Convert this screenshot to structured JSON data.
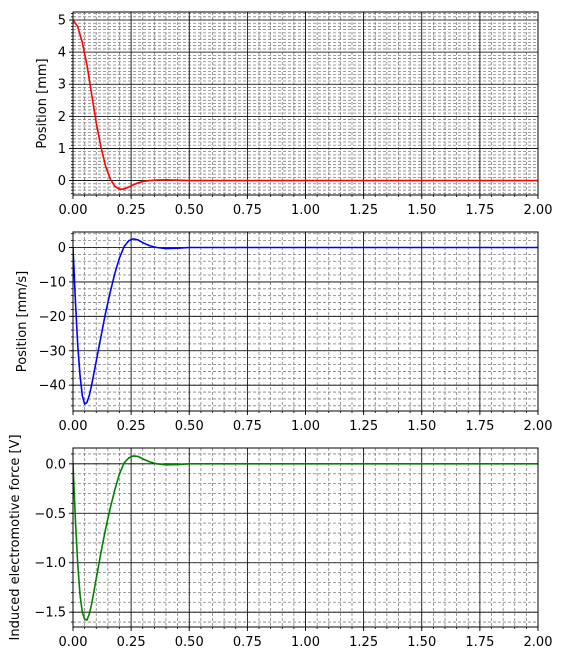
{
  "chart_data": [
    {
      "type": "line",
      "title": "",
      "xlabel": "",
      "ylabel": "Position [mm]",
      "xlim": [
        0,
        2
      ],
      "ylim": [
        -0.45,
        5.25
      ],
      "x_ticks": [
        0,
        0.25,
        0.5,
        0.75,
        1.0,
        1.25,
        1.5,
        1.75,
        2.0
      ],
      "x_tick_labels": [
        "0.00",
        "0.25",
        "0.50",
        "0.75",
        "1.00",
        "1.25",
        "1.50",
        "1.75",
        "2.00"
      ],
      "y_ticks": [
        0,
        1,
        2,
        3,
        4,
        5
      ],
      "y_tick_labels": [
        "0",
        "1",
        "2",
        "3",
        "4",
        "5"
      ],
      "grid": "major solid, minor dashed",
      "series": [
        {
          "color": "#ff0000",
          "x": [
            0,
            0.02,
            0.04,
            0.06,
            0.08,
            0.1,
            0.12,
            0.14,
            0.16,
            0.18,
            0.2,
            0.22,
            0.24,
            0.26,
            0.28,
            0.3,
            0.33,
            0.36,
            0.4,
            0.45,
            0.5,
            0.6,
            0.8,
            1.0,
            1.25,
            1.5,
            1.75,
            2.0
          ],
          "y": [
            5.0,
            4.8,
            4.3,
            3.6,
            2.7,
            1.8,
            1.05,
            0.45,
            0.05,
            -0.18,
            -0.27,
            -0.26,
            -0.2,
            -0.13,
            -0.07,
            -0.03,
            0.0,
            0.015,
            0.02,
            0.01,
            0.0,
            0.0,
            0.0,
            0.0,
            0.0,
            0.0,
            0.0,
            0.0
          ]
        }
      ]
    },
    {
      "type": "line",
      "title": "",
      "xlabel": "",
      "ylabel": "Position [mm/s]",
      "xlim": [
        0,
        2
      ],
      "ylim": [
        -47.5,
        4.5
      ],
      "x_ticks": [
        0,
        0.25,
        0.5,
        0.75,
        1.0,
        1.25,
        1.5,
        1.75,
        2.0
      ],
      "x_tick_labels": [
        "0.00",
        "0.25",
        "0.50",
        "0.75",
        "1.00",
        "1.25",
        "1.50",
        "1.75",
        "2.00"
      ],
      "y_ticks": [
        -40,
        -30,
        -20,
        -10,
        0
      ],
      "y_tick_labels": [
        "−40",
        "−30",
        "−20",
        "−10",
        "0"
      ],
      "grid": "major solid, minor dashed",
      "series": [
        {
          "color": "#0000ff",
          "x": [
            0,
            0.01,
            0.02,
            0.03,
            0.04,
            0.05,
            0.06,
            0.07,
            0.08,
            0.1,
            0.12,
            0.14,
            0.16,
            0.18,
            0.2,
            0.22,
            0.24,
            0.26,
            0.28,
            0.3,
            0.33,
            0.36,
            0.4,
            0.45,
            0.5,
            0.6,
            0.8,
            1.0,
            1.25,
            1.5,
            1.75,
            2.0
          ],
          "y": [
            0,
            -15,
            -28,
            -37,
            -43,
            -45.5,
            -45,
            -43,
            -40,
            -33,
            -26,
            -19,
            -13,
            -7.5,
            -3,
            0.3,
            2.0,
            2.5,
            2.2,
            1.4,
            0.5,
            0.0,
            -0.3,
            -0.2,
            0.0,
            0.0,
            0.0,
            0.0,
            0.0,
            0.0,
            0.0,
            0.0
          ]
        }
      ]
    },
    {
      "type": "line",
      "title": "",
      "xlabel": "",
      "ylabel": "Induced electromotive force [V]",
      "xlim": [
        0,
        2
      ],
      "ylim": [
        -1.65,
        0.16
      ],
      "x_ticks": [
        0,
        0.25,
        0.5,
        0.75,
        1.0,
        1.25,
        1.5,
        1.75,
        2.0
      ],
      "x_tick_labels": [
        "0.00",
        "0.25",
        "0.50",
        "0.75",
        "1.00",
        "1.25",
        "1.50",
        "1.75",
        "2.00"
      ],
      "y_ticks": [
        -1.5,
        -1.0,
        -0.5,
        0.0
      ],
      "y_tick_labels": [
        "−1.5",
        "−1.0",
        "−0.5",
        "0.0"
      ],
      "grid": "major solid, minor dashed",
      "series": [
        {
          "color": "#008000",
          "x": [
            0,
            0.01,
            0.02,
            0.03,
            0.04,
            0.05,
            0.06,
            0.07,
            0.08,
            0.1,
            0.12,
            0.14,
            0.16,
            0.18,
            0.2,
            0.22,
            0.24,
            0.26,
            0.28,
            0.3,
            0.33,
            0.36,
            0.4,
            0.45,
            0.5,
            0.6,
            0.8,
            1.0,
            1.25,
            1.5,
            1.75,
            2.0
          ],
          "y": [
            0,
            -0.55,
            -1.0,
            -1.32,
            -1.5,
            -1.57,
            -1.58,
            -1.52,
            -1.42,
            -1.16,
            -0.9,
            -0.66,
            -0.45,
            -0.26,
            -0.1,
            0.01,
            0.06,
            0.08,
            0.075,
            0.05,
            0.02,
            0.0,
            -0.01,
            -0.008,
            0.0,
            0.0,
            0.0,
            0.0,
            0.0,
            0.0,
            0.0,
            0.0
          ]
        }
      ]
    }
  ]
}
